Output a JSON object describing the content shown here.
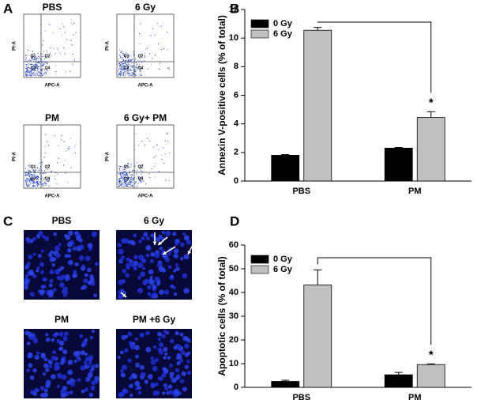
{
  "panel_a": {
    "label": "A",
    "plots": [
      {
        "title": "PBS",
        "x_label": "APC-A",
        "y_label": "PI-A",
        "quadrants": [
          "Q1",
          "Q2",
          "Q3",
          "Q4"
        ]
      },
      {
        "title": "6 Gy",
        "x_label": "APC-A",
        "y_label": "PI-A",
        "quadrants": [
          "Q1",
          "Q2",
          "Q3",
          "Q4"
        ]
      },
      {
        "title": "PM",
        "x_label": "APC-A",
        "y_label": "PI-A",
        "quadrants": [
          "Q1",
          "Q2",
          "Q3",
          "Q4"
        ]
      },
      {
        "title": "6 Gy+ PM",
        "x_label": "APC-A",
        "y_label": "PI-A",
        "quadrants": [
          "Q1",
          "Q2",
          "Q3",
          "Q4"
        ]
      }
    ]
  },
  "panel_c": {
    "label": "C",
    "images": [
      {
        "title": "PBS"
      },
      {
        "title": "6 Gy"
      },
      {
        "title": "PM"
      },
      {
        "title": "PM +6 Gy"
      }
    ]
  },
  "chart_data": [
    {
      "type": "bar",
      "panel_label": "B",
      "y_label": "Annexin V-positive cells (% of total)",
      "categories": [
        "PBS",
        "PM"
      ],
      "series": [
        {
          "name": "0 Gy",
          "color": "#000000",
          "values": [
            1.8,
            2.3
          ],
          "errors": [
            0.05,
            0.05
          ]
        },
        {
          "name": "6 Gy",
          "color": "#c0c0c0",
          "values": [
            10.55,
            4.45
          ],
          "errors": [
            0.2,
            0.4
          ]
        }
      ],
      "ylim": [
        0,
        12
      ],
      "yticks": [
        0,
        2,
        4,
        6,
        8,
        10,
        12
      ],
      "legend": "upper left",
      "annotation": "*"
    },
    {
      "type": "bar",
      "panel_label": "D",
      "y_label": "Apoptotic cells (% of total)",
      "categories": [
        "PBS",
        "PM"
      ],
      "series": [
        {
          "name": "0 Gy",
          "color": "#000000",
          "values": [
            2.5,
            5.3
          ],
          "errors": [
            0.5,
            1.0
          ]
        },
        {
          "name": "6 Gy",
          "color": "#c0c0c0",
          "values": [
            43.2,
            9.6
          ],
          "errors": [
            6.3,
            0.3
          ]
        }
      ],
      "ylim": [
        0,
        60
      ],
      "yticks": [
        0,
        10,
        20,
        30,
        40,
        50,
        60
      ],
      "legend": "upper left",
      "annotation": "*"
    }
  ]
}
